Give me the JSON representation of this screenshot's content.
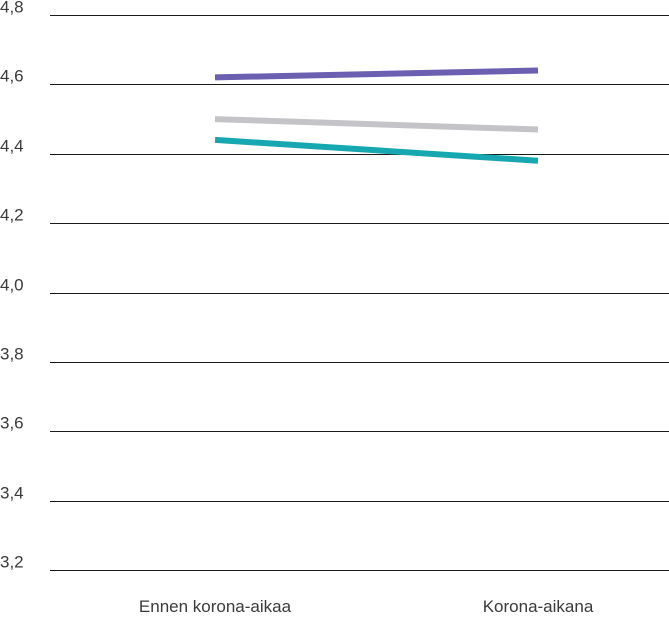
{
  "chart_data": {
    "type": "line",
    "title": "",
    "xlabel": "",
    "ylabel": "",
    "categories": [
      "Ennen korona-aikaa",
      "Korona-aikana"
    ],
    "ylim": [
      3.2,
      4.8
    ],
    "yticks": [
      3.2,
      3.4,
      3.6,
      3.8,
      4.0,
      4.2,
      4.4,
      4.6,
      4.8
    ],
    "ytick_labels": [
      "3,2",
      "3,4",
      "3,6",
      "3,8",
      "4,0",
      "4,2",
      "4,4",
      "4,6",
      "4,8"
    ],
    "grid": true,
    "legend": "none",
    "series": [
      {
        "color": "#6a5fb0",
        "values": [
          4.62,
          4.64
        ]
      },
      {
        "color": "#c4c4c8",
        "values": [
          4.5,
          4.47
        ]
      },
      {
        "color": "#17a7b0",
        "values": [
          4.44,
          4.38
        ]
      }
    ]
  }
}
